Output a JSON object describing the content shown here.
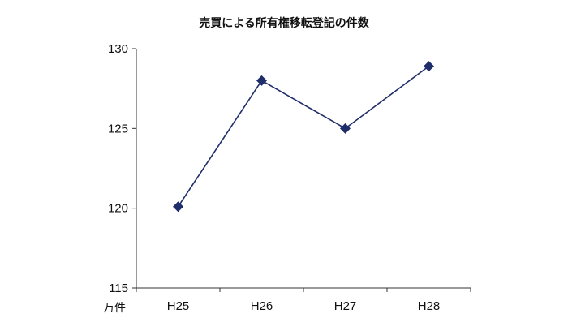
{
  "chart_data": {
    "type": "line",
    "title": "売買による所有権移転登記の件数",
    "categories": [
      "H25",
      "H26",
      "H27",
      "H28"
    ],
    "series": [
      {
        "values": [
          120.1,
          128.0,
          125.0,
          128.9
        ]
      }
    ],
    "y_unit": "万件",
    "ylim": [
      115,
      130
    ],
    "yticks": [
      115,
      120,
      125,
      130
    ],
    "grid": false,
    "legend": "none",
    "marker": "diamond",
    "line_color": "#1f2d6b",
    "marker_color": "#1f2d6b"
  }
}
